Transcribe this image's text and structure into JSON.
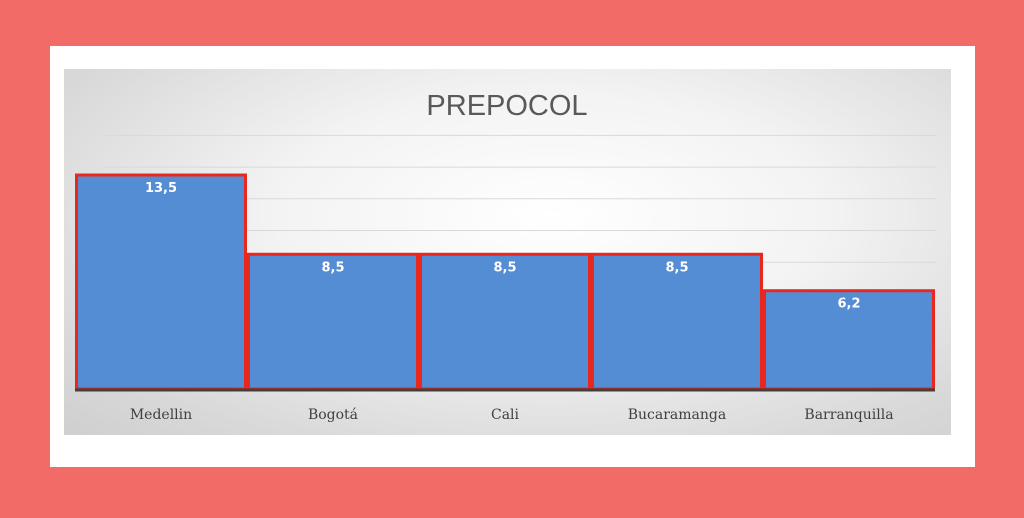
{
  "chart_data": {
    "type": "bar",
    "title": "PREPOCOL",
    "categories": [
      "Medellin",
      "Bogotá",
      "Cali",
      "Bucaramanga",
      "Barranquilla"
    ],
    "values": [
      13.5,
      8.5,
      8.5,
      8.5,
      6.2
    ],
    "data_labels": [
      "13,5",
      "8,5",
      "8,5",
      "8,5",
      "6,2"
    ],
    "xlabel": "",
    "ylabel": "",
    "ylim": [
      0,
      16
    ],
    "grid": true,
    "legend": "none",
    "bar_color": "#548dd4",
    "bar_border_color": "#e8281e",
    "axis_color": "#404040"
  }
}
